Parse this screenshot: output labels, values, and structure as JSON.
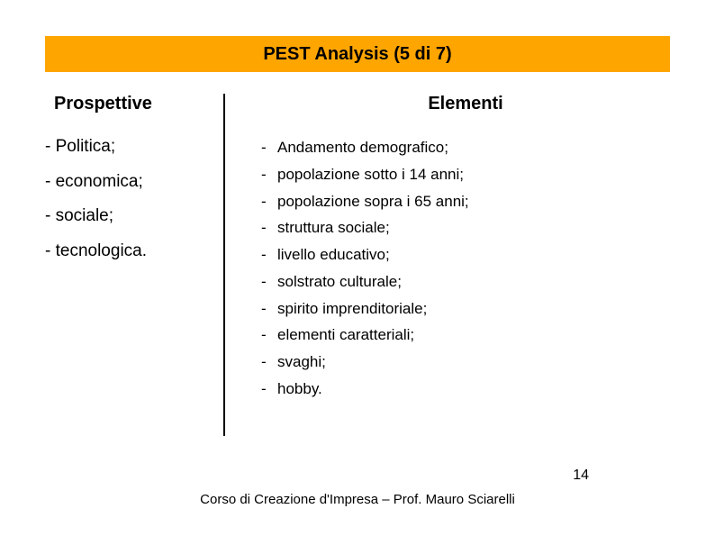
{
  "title": "PEST Analysis (5 di 7)",
  "columns": {
    "left_header": "Prospettive",
    "right_header": "Elementi"
  },
  "prospettive": [
    "- Politica;",
    "- economica;",
    "- sociale;",
    "- tecnologica."
  ],
  "elementi": [
    "Andamento demografico;",
    "popolazione sotto i 14 anni;",
    "popolazione sopra i 65 anni;",
    "struttura sociale;",
    "livello educativo;",
    "solstrato culturale;",
    "spirito imprenditoriale;",
    "elementi caratteriali;",
    "svaghi;",
    "hobby."
  ],
  "page_number": "14",
  "footer": "Corso di Creazione d'Impresa – Prof. Mauro Sciarelli",
  "colors": {
    "title_bg": "#ffa500",
    "text": "#000000",
    "background": "#ffffff",
    "divider": "#000000"
  }
}
